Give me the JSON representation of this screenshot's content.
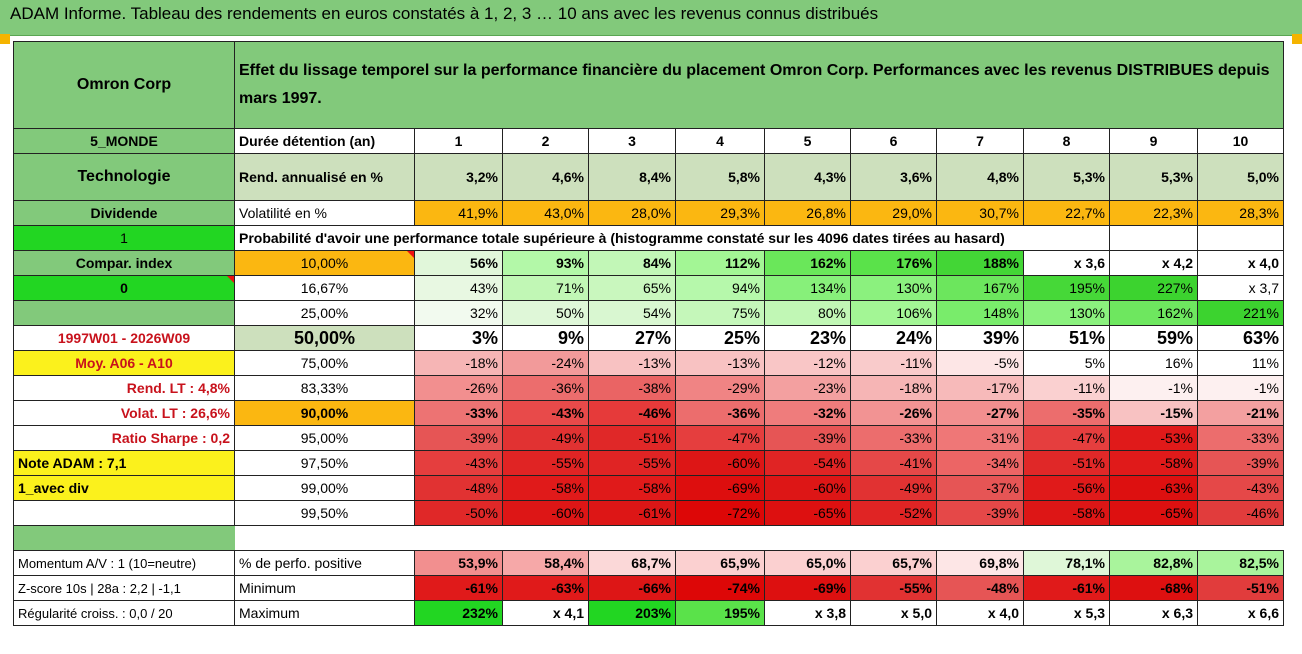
{
  "title": "ADAM Informe. Tableau des rendements en euros constatés à 1, 2, 3 … 10 ans avec les revenus connus distribués",
  "header": {
    "company": "Omron Corp",
    "description": "Effet du lissage temporel sur la performance financière du placement Omron Corp. Performances avec les revenus DISTRIBUES depuis mars 1997."
  },
  "side": {
    "region": "5_MONDE",
    "sector": "Technologie",
    "dividend": "Dividende",
    "one": "1",
    "compar": "Compar. index",
    "zero": "0",
    "period": "1997W01 - 2026W09",
    "moy": "Moy. A06 - A10",
    "rend_lt": "Rend. LT :   4,8%",
    "volat_lt": "Volat. LT :   26,6%",
    "sharpe": "Ratio Sharpe :   0,2",
    "note": "Note ADAM : 7,1",
    "avec_div": "1_avec div"
  },
  "years": {
    "label": "Durée détention (an)",
    "values": [
      "1",
      "2",
      "3",
      "4",
      "5",
      "6",
      "7",
      "8",
      "9",
      "10"
    ]
  },
  "rend": {
    "label": "Rend. annualisé en %",
    "values": [
      "3,2%",
      "4,6%",
      "8,4%",
      "5,8%",
      "4,3%",
      "3,6%",
      "4,8%",
      "5,3%",
      "5,3%",
      "5,0%"
    ]
  },
  "vol": {
    "label": "Volatilité en %",
    "values": [
      "41,9%",
      "43,0%",
      "28,0%",
      "29,3%",
      "26,8%",
      "29,0%",
      "30,7%",
      "22,7%",
      "22,3%",
      "28,3%"
    ]
  },
  "proba_label": "Probabilité d'avoir une performance totale supérieure à (histogramme constaté sur les 4096 dates tirées au hasard)",
  "quantiles": [
    {
      "label": "10,00%",
      "values": [
        "56%",
        "93%",
        "84%",
        "112%",
        "162%",
        "176%",
        "188%",
        "x 3,6",
        "x 4,2",
        "x 4,0"
      ]
    },
    {
      "label": "16,67%",
      "values": [
        "43%",
        "71%",
        "65%",
        "94%",
        "134%",
        "130%",
        "167%",
        "195%",
        "227%",
        "x 3,7"
      ]
    },
    {
      "label": "25,00%",
      "values": [
        "32%",
        "50%",
        "54%",
        "75%",
        "80%",
        "106%",
        "148%",
        "130%",
        "162%",
        "221%"
      ]
    },
    {
      "label": "50,00%",
      "values": [
        "3%",
        "9%",
        "27%",
        "25%",
        "23%",
        "24%",
        "39%",
        "51%",
        "59%",
        "63%"
      ]
    },
    {
      "label": "75,00%",
      "values": [
        "-18%",
        "-24%",
        "-13%",
        "-13%",
        "-12%",
        "-11%",
        "-5%",
        "5%",
        "16%",
        "11%"
      ]
    },
    {
      "label": "83,33%",
      "values": [
        "-26%",
        "-36%",
        "-38%",
        "-29%",
        "-23%",
        "-18%",
        "-17%",
        "-11%",
        "-1%",
        "-1%"
      ]
    },
    {
      "label": "90,00%",
      "values": [
        "-33%",
        "-43%",
        "-46%",
        "-36%",
        "-32%",
        "-26%",
        "-27%",
        "-35%",
        "-15%",
        "-21%"
      ]
    },
    {
      "label": "95,00%",
      "values": [
        "-39%",
        "-49%",
        "-51%",
        "-47%",
        "-39%",
        "-33%",
        "-31%",
        "-47%",
        "-53%",
        "-33%"
      ]
    },
    {
      "label": "97,50%",
      "values": [
        "-43%",
        "-55%",
        "-55%",
        "-60%",
        "-54%",
        "-41%",
        "-34%",
        "-51%",
        "-58%",
        "-39%"
      ]
    },
    {
      "label": "99,00%",
      "values": [
        "-48%",
        "-58%",
        "-58%",
        "-69%",
        "-60%",
        "-49%",
        "-37%",
        "-56%",
        "-63%",
        "-43%"
      ]
    },
    {
      "label": "99,50%",
      "values": [
        "-50%",
        "-60%",
        "-61%",
        "-72%",
        "-65%",
        "-52%",
        "-39%",
        "-58%",
        "-65%",
        "-46%"
      ]
    }
  ],
  "bottom": [
    {
      "side": "Momentum A/V : 1 (10=neutre)",
      "label": "% de perfo. positive",
      "values": [
        "53,9%",
        "58,4%",
        "68,7%",
        "65,9%",
        "65,0%",
        "65,7%",
        "69,8%",
        "78,1%",
        "82,8%",
        "82,5%"
      ]
    },
    {
      "side": "Z-score 10s | 28a : 2,2 | -1,1",
      "label": "Minimum",
      "values": [
        "-61%",
        "-63%",
        "-66%",
        "-74%",
        "-69%",
        "-55%",
        "-48%",
        "-61%",
        "-68%",
        "-51%"
      ]
    },
    {
      "side": "Régularité croiss. : 0,0 / 20",
      "label": "Maximum",
      "values": [
        "232%",
        "x 4,1",
        "203%",
        "195%",
        "x 3,8",
        "x 5,0",
        "x 4,0",
        "x 5,3",
        "x 6,3",
        "x 6,6"
      ]
    }
  ],
  "colors": {
    "header_green": "#82c97b",
    "light_green": "#cde0bd",
    "bright_green": "#22d622",
    "gold": "#fbb711",
    "yellow": "#fbf11c",
    "red_text": "#c8121c"
  },
  "cell_colors": {
    "quantiles": [
      [
        "#e1f7da",
        "#b3f8a8",
        "#c2f7b7",
        "#a3f695",
        "#6ae75a",
        "#5ae24a",
        "#43d636",
        "#ffffff",
        "#ffffff",
        "#ffffff"
      ],
      [
        "#e8f8e2",
        "#c1f7b5",
        "#c9f7be",
        "#b6f8ab",
        "#87f07a",
        "#8bf17e",
        "#6ce65d",
        "#46d838",
        "#3cd32f",
        "#ffffff"
      ],
      [
        "#f2faef",
        "#dff7d8",
        "#d9f7d1",
        "#c5f7ba",
        "#c1f7b5",
        "#a3f695",
        "#79ec6b",
        "#8bf17e",
        "#6ee75f",
        "#3cd32f"
      ],
      [
        "#ffffff",
        "#ffffff",
        "#ffffff",
        "#ffffff",
        "#ffffff",
        "#ffffff",
        "#ffffff",
        "#ffffff",
        "#ffffff",
        "#ffffff"
      ],
      [
        "#f6b5b5",
        "#f29a9a",
        "#f8c2c2",
        "#f8c2c2",
        "#f9c6c6",
        "#f9cbcb",
        "#fde6e6",
        "#ffffff",
        "#ffffff",
        "#ffffff"
      ],
      [
        "#f28f8f",
        "#ec6d6d",
        "#ea6464",
        "#f08484",
        "#f3a0a0",
        "#f6b5b5",
        "#f7baba",
        "#fad0d0",
        "#fdf0f0",
        "#fdf0f0"
      ],
      [
        "#ed7373",
        "#e84a4a",
        "#e63a3a",
        "#ec6d6d",
        "#ef7c7c",
        "#f29393",
        "#f28f8f",
        "#ec6d6d",
        "#f8c2c2",
        "#f3a0a0"
      ],
      [
        "#e65555",
        "#e13232",
        "#e02828",
        "#e53e3e",
        "#e65555",
        "#ec6d6d",
        "#ef7777",
        "#e53e3e",
        "#e01a1a",
        "#ec6d6d"
      ],
      [
        "#e53e3e",
        "#e02424",
        "#e02424",
        "#dd1616",
        "#e02424",
        "#e54848",
        "#ec6565",
        "#e02828",
        "#e01a1a",
        "#e65555"
      ],
      [
        "#e13232",
        "#e01a1a",
        "#e01a1a",
        "#dd0e0e",
        "#dd1616",
        "#e13232",
        "#e65555",
        "#e01a1a",
        "#dd1010",
        "#e54848"
      ],
      [
        "#e02828",
        "#dd1616",
        "#dd1616",
        "#dd0707",
        "#dd1010",
        "#e02424",
        "#e54848",
        "#dd1616",
        "#dd1010",
        "#e13c3c"
      ]
    ],
    "bottom": [
      [
        "#f28f8f",
        "#f6a8a8",
        "#fbd8d8",
        "#fbd0d0",
        "#fbd0d0",
        "#fbd0d0",
        "#fde6e6",
        "#dff7d8",
        "#a9f49c",
        "#a9f49c"
      ],
      [
        "#e01a1a",
        "#e01a1a",
        "#dd1616",
        "#dd0707",
        "#dd1010",
        "#e13232",
        "#e65555",
        "#e01a1a",
        "#dd1010",
        "#e13c3c"
      ],
      [
        "#22d622",
        "#ffffff",
        "#22d622",
        "#5ae24a",
        "#ffffff",
        "#ffffff",
        "#ffffff",
        "#ffffff",
        "#ffffff",
        "#ffffff"
      ]
    ]
  }
}
